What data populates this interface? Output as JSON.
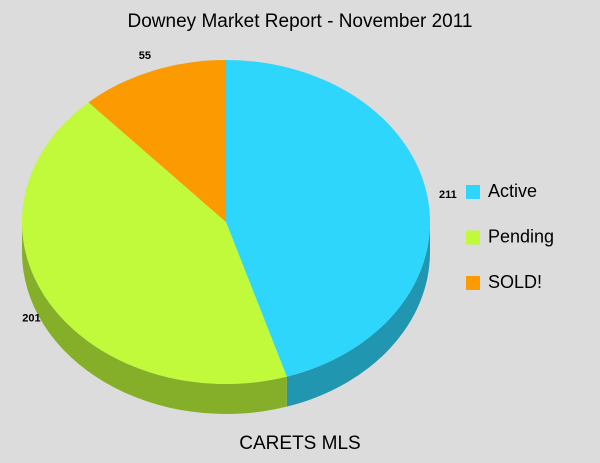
{
  "chart_data": {
    "type": "pie",
    "title": "Downey Market Report - November 2011",
    "caption": "CARETS MLS",
    "categories": [
      "Active",
      "Pending",
      "SOLD!"
    ],
    "values": [
      211,
      201,
      55
    ],
    "colors": [
      "#2ed6fc",
      "#c0fa3a",
      "#fc9a02"
    ],
    "legend": "right",
    "three_d": true
  }
}
